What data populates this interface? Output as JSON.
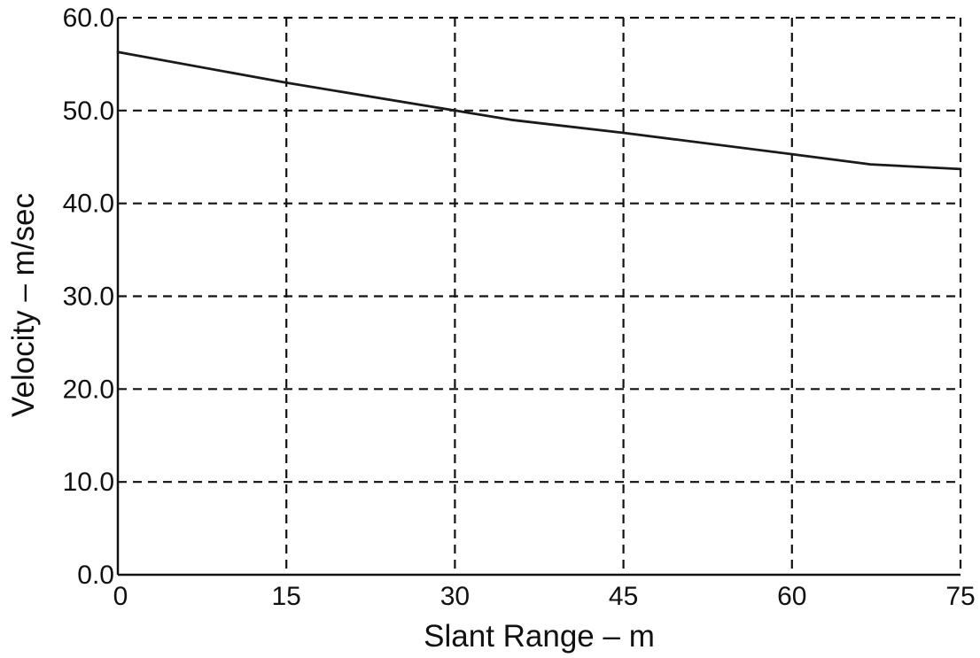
{
  "chart_data": {
    "type": "line",
    "title": "",
    "xlabel": "Slant Range – m",
    "ylabel": "Velocity – m/sec",
    "xlim": [
      0,
      75
    ],
    "ylim": [
      0,
      60
    ],
    "x_ticks": [
      0,
      15,
      30,
      45,
      60,
      75
    ],
    "y_ticks": [
      0,
      10,
      20,
      30,
      40,
      50,
      60
    ],
    "x_tick_labels": [
      "0",
      "15",
      "30",
      "45",
      "60",
      "75"
    ],
    "y_tick_labels": [
      "0.0",
      "10.0",
      "20.0",
      "30.0",
      "40.0",
      "50.0",
      "60.0"
    ],
    "grid": true,
    "grid_style": "dashed",
    "line_color": "#1a1a1a",
    "series": [
      {
        "x": [
          0,
          15,
          30,
          35,
          45,
          60,
          67,
          75
        ],
        "y": [
          56.3,
          53.0,
          50.0,
          49.0,
          47.6,
          45.3,
          44.2,
          43.7
        ]
      }
    ]
  }
}
